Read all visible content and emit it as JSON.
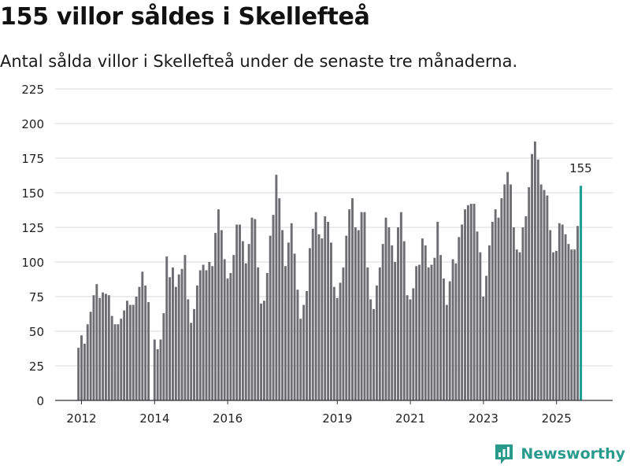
{
  "header": {
    "title": "155 villor såldes i Skellefteå",
    "subtitle": "Antal sålda villor i Skellefteå under de senaste tre månaderna."
  },
  "brand": {
    "name": "Newsworthy"
  },
  "colors": {
    "bar": "#6e6d72",
    "highlight": "#1f9e94",
    "grid": "#d9d9d9",
    "axis": "#333333",
    "brand": "#2a9a8c"
  },
  "chart_data": {
    "type": "bar",
    "title": "155 villor såldes i Skellefteå",
    "subtitle": "Antal sålda villor i Skellefteå under de senaste tre månaderna.",
    "xlabel": "",
    "ylabel": "",
    "ylim": [
      0,
      225
    ],
    "yticks": [
      0,
      25,
      50,
      75,
      100,
      125,
      150,
      175,
      200,
      225
    ],
    "xticks": [
      {
        "label": "2012",
        "x": 2012.0
      },
      {
        "label": "2014",
        "x": 2014.0
      },
      {
        "label": "2016",
        "x": 2016.0
      },
      {
        "label": "2019",
        "x": 2019.0
      },
      {
        "label": "2021",
        "x": 2021.0
      },
      {
        "label": "2023",
        "x": 2023.0
      },
      {
        "label": "2025",
        "x": 2025.0
      }
    ],
    "x_start": 2011.917,
    "x_step": 0.0833,
    "highlight_label": "155",
    "values": [
      38,
      47,
      41,
      55,
      64,
      76,
      84,
      74,
      78,
      77,
      76,
      61,
      55,
      55,
      59,
      65,
      72,
      69,
      69,
      75,
      82,
      93,
      83,
      71,
      0,
      44,
      37,
      44,
      63,
      104,
      89,
      96,
      82,
      91,
      95,
      105,
      73,
      56,
      66,
      83,
      94,
      98,
      94,
      100,
      97,
      121,
      138,
      123,
      102,
      88,
      92,
      105,
      127,
      127,
      115,
      99,
      113,
      132,
      131,
      96,
      70,
      72,
      92,
      119,
      134,
      163,
      146,
      123,
      97,
      114,
      128,
      106,
      80,
      59,
      69,
      79,
      110,
      124,
      136,
      120,
      117,
      133,
      129,
      114,
      82,
      74,
      85,
      96,
      119,
      138,
      146,
      125,
      123,
      136,
      136,
      96,
      73,
      66,
      83,
      96,
      113,
      132,
      125,
      112,
      100,
      125,
      136,
      115,
      76,
      73,
      81,
      97,
      98,
      117,
      112,
      96,
      98,
      103,
      129,
      105,
      88,
      69,
      86,
      102,
      99,
      118,
      127,
      138,
      141,
      142,
      142,
      122,
      107,
      75,
      90,
      112,
      129,
      138,
      132,
      146,
      156,
      165,
      156,
      125,
      109,
      107,
      125,
      133,
      154,
      178,
      187,
      174,
      156,
      152,
      148,
      123,
      107,
      108,
      128,
      127,
      120,
      113,
      109,
      109,
      126,
      155
    ]
  }
}
